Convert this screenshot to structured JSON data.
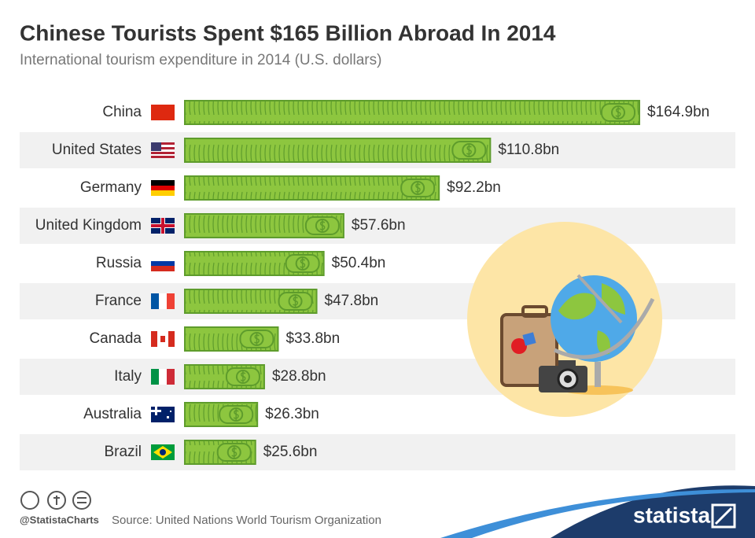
{
  "chart_data": {
    "type": "bar",
    "orientation": "horizontal",
    "title": "Chinese Tourists Spent $165 Billion Abroad In 2014",
    "subtitle": "International tourism expenditure in 2014 (U.S. dollars)",
    "categories": [
      "China",
      "United States",
      "Germany",
      "United Kingdom",
      "Russia",
      "France",
      "Canada",
      "Italy",
      "Australia",
      "Brazil"
    ],
    "values": [
      164.9,
      110.8,
      92.2,
      57.6,
      50.4,
      47.8,
      33.8,
      28.8,
      26.3,
      25.6
    ],
    "value_labels": [
      "$164.9bn",
      "$110.8bn",
      "$92.2bn",
      "$57.6bn",
      "$50.4bn",
      "$47.8bn",
      "$33.8bn",
      "$28.8bn",
      "$26.3bn",
      "$25.6bn"
    ],
    "color": "#8dc63f",
    "source": "Source: United Nations World Tourism Organization",
    "handle": "@StatistaCharts",
    "brand": "statista"
  }
}
